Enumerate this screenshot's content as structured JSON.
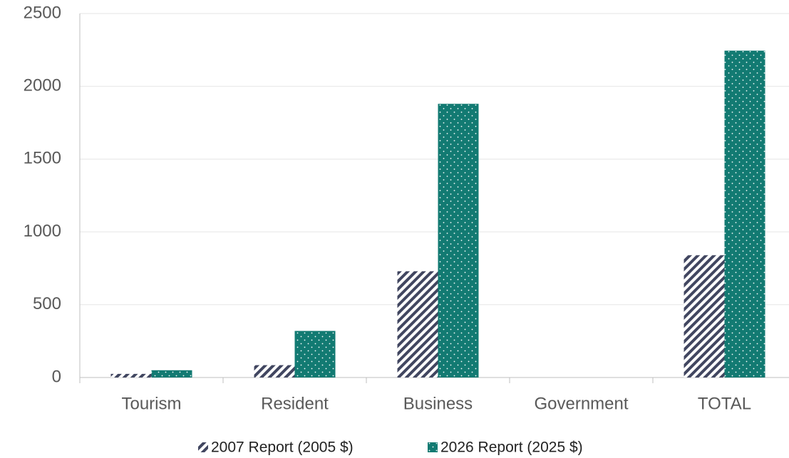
{
  "chart_data": {
    "type": "bar",
    "categories": [
      "Tourism",
      "Resident",
      "Business",
      "Government",
      "TOTAL"
    ],
    "series": [
      {
        "name": "2007 Report (2005 $)",
        "color": "#414660",
        "values": [
          25,
          85,
          730,
          0,
          840
        ]
      },
      {
        "name": "2026 Report (2025 $)",
        "color": "#127a72",
        "values": [
          50,
          320,
          1880,
          0,
          2245
        ]
      }
    ],
    "ylim": [
      0,
      2500
    ],
    "yticks": [
      0,
      500,
      1000,
      1500,
      2000,
      2500
    ],
    "grid": true,
    "legend": "bottom"
  }
}
